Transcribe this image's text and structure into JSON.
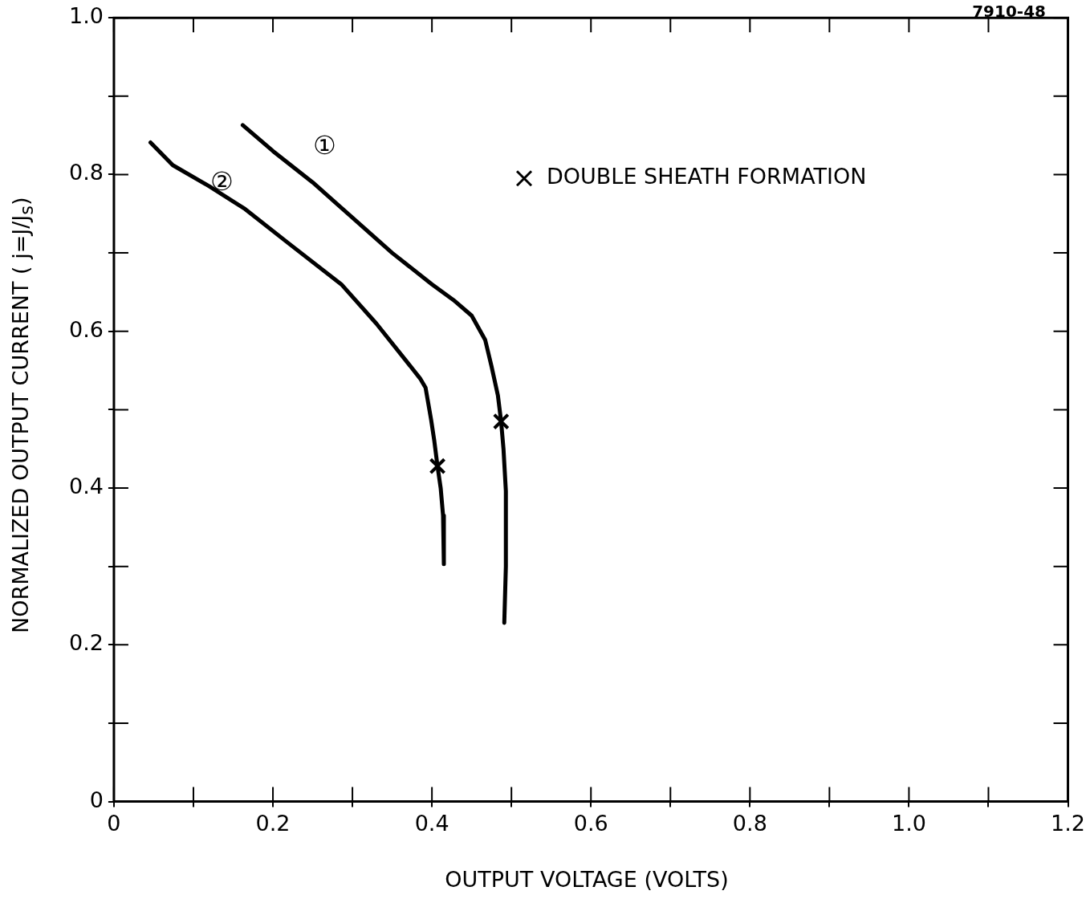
{
  "chart_data": {
    "type": "line",
    "xlabel": "OUTPUT VOLTAGE (VOLTS)",
    "ylabel": "NORMALIZED OUTPUT CURRENT ( j=J/J$_{s}$)",
    "series": [
      {
        "color": "#000000",
        "x": [
          0.162,
          0.2,
          0.25,
          0.3,
          0.35,
          0.4,
          0.427,
          0.45,
          0.467,
          0.475,
          0.483,
          0.487,
          0.49,
          0.493,
          0.493,
          0.491
        ],
        "values": [
          0.863,
          0.83,
          0.79,
          0.745,
          0.7,
          0.66,
          0.64,
          0.62,
          0.589,
          0.555,
          0.518,
          0.485,
          0.45,
          0.396,
          0.3,
          0.228
        ]
      },
      {
        "color": "#000000",
        "x": [
          0.046,
          0.074,
          0.12,
          0.165,
          0.22,
          0.286,
          0.33,
          0.367,
          0.385,
          0.392,
          0.399,
          0.403,
          0.407,
          0.411,
          0.414,
          0.415
        ],
        "values": [
          0.841,
          0.812,
          0.785,
          0.756,
          0.712,
          0.66,
          0.61,
          0.563,
          0.54,
          0.528,
          0.487,
          0.46,
          0.428,
          0.4,
          0.365,
          0.303
        ]
      },
      {
        "type": "scatter",
        "name": "DOUBLE SHEATH FORMATION",
        "color": "#000000",
        "marker": "cross",
        "x": [
          0.487,
          0.407
        ],
        "values": [
          0.485,
          0.428
        ]
      }
    ],
    "xlim": [
      0,
      1.2
    ],
    "ylim": [
      0,
      1.0
    ],
    "xticks": [
      0,
      {
        "value": 0.1,
        "label": null
      },
      0.2,
      {
        "value": 0.3,
        "label": null
      },
      0.4,
      {
        "value": 0.5,
        "label": null
      },
      0.6,
      {
        "value": 0.7,
        "label": null
      },
      0.8,
      {
        "value": 0.9,
        "label": null
      },
      {
        "value": 1,
        "label": "1.0"
      },
      {
        "value": 1.1,
        "label": null
      },
      1.2
    ],
    "yticks": [
      0,
      {
        "value": 0.1,
        "label": null
      },
      0.2,
      {
        "value": 0.3,
        "label": null
      },
      0.4,
      {
        "value": 0.5,
        "label": null
      },
      0.6,
      {
        "value": 0.7,
        "label": null
      },
      0.8,
      {
        "value": 0.9,
        "label": null
      },
      {
        "value": 1,
        "label": "1.0"
      }
    ],
    "grid": false,
    "legend": "top right",
    "marker": "none",
    "line_style": "solid",
    "annotations": [
      "①",
      "②",
      "7910-48"
    ]
  }
}
